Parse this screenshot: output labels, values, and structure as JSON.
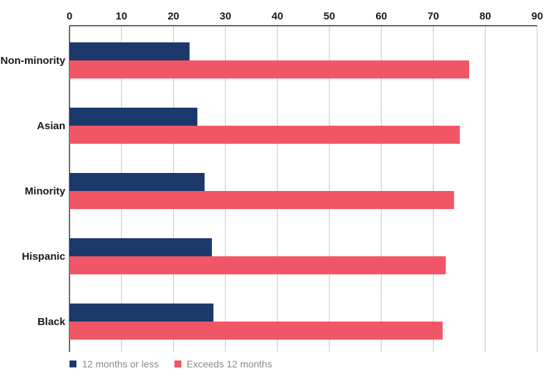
{
  "chart_data": {
    "type": "bar",
    "orientation": "horizontal",
    "categories": [
      "Non-minority",
      "Asian",
      "Minority",
      "Hispanic",
      "Black"
    ],
    "series": [
      {
        "name": "12 months or less",
        "color": "#1b3a6b",
        "values": [
          23.1,
          24.6,
          26.0,
          27.4,
          27.7
        ]
      },
      {
        "name": "Exceeds 12 months",
        "color": "#f05665",
        "values": [
          76.9,
          75.1,
          74.0,
          72.4,
          71.8
        ]
      }
    ],
    "xlim": [
      0,
      90
    ],
    "xticks": [
      "0",
      "10",
      "20",
      "30",
      "40",
      "50",
      "60",
      "70",
      "80",
      "90"
    ],
    "grid": true,
    "legend_position": "bottom-left",
    "title": "",
    "xlabel": "",
    "ylabel": ""
  }
}
